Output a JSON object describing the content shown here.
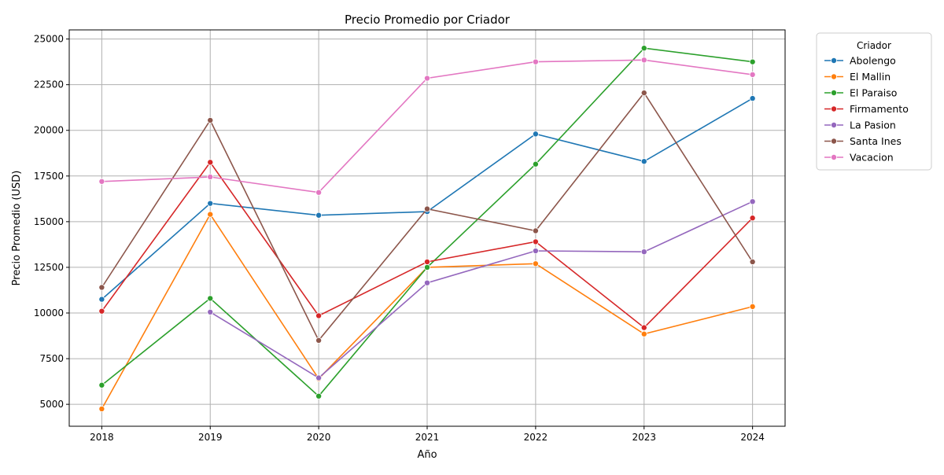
{
  "chart_data": {
    "type": "line",
    "title": "Precio Promedio por Criador",
    "xlabel": "Año",
    "ylabel": "Precio Promedio (USD)",
    "x": [
      2018,
      2019,
      2020,
      2021,
      2022,
      2023,
      2024
    ],
    "xlim": [
      2017.7,
      2024.3
    ],
    "ylim": [
      3800,
      25500
    ],
    "yticks": [
      5000,
      7500,
      10000,
      12500,
      15000,
      17500,
      20000,
      22500,
      25000
    ],
    "grid": true,
    "legend": {
      "title": "Criador",
      "placement": "outside-top-right"
    },
    "series": [
      {
        "name": "Abolengo",
        "color": "#1f77b4",
        "values": [
          10750,
          16000,
          15350,
          15550,
          19800,
          18300,
          21750
        ]
      },
      {
        "name": "El Mallin",
        "color": "#ff7f0e",
        "values": [
          4750,
          15400,
          6400,
          12500,
          12700,
          8850,
          10350
        ]
      },
      {
        "name": "El Paraiso",
        "color": "#2ca02c",
        "values": [
          6050,
          10800,
          5450,
          12500,
          18150,
          24500,
          23750
        ]
      },
      {
        "name": "Firmamento",
        "color": "#d62728",
        "values": [
          10100,
          18250,
          9850,
          12800,
          13900,
          9200,
          15200
        ]
      },
      {
        "name": "La Pasion",
        "color": "#9467bd",
        "values": [
          null,
          10050,
          6450,
          11650,
          13400,
          13350,
          16100
        ]
      },
      {
        "name": "Santa Ines",
        "color": "#8c564b",
        "values": [
          11400,
          20550,
          8500,
          15700,
          14500,
          22050,
          12800
        ]
      },
      {
        "name": "Vacacion",
        "color": "#e377c2",
        "values": [
          17200,
          17450,
          16600,
          22850,
          23750,
          23850,
          23050
        ]
      }
    ]
  }
}
